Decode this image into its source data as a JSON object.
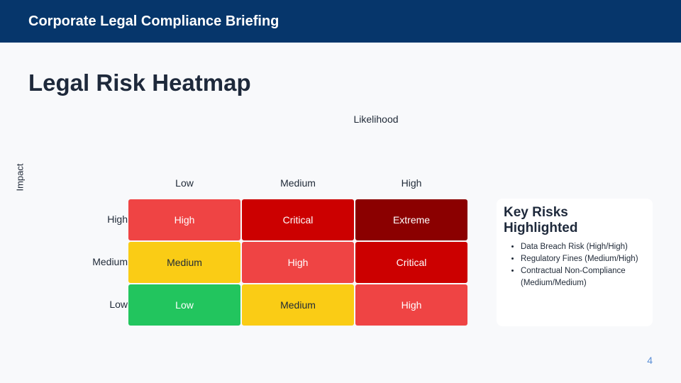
{
  "header": {
    "title": "Corporate Legal Compliance Briefing"
  },
  "slide": {
    "title": "Legal Risk Heatmap",
    "page_number": "4"
  },
  "heatmap": {
    "x_axis_label": "Likelihood",
    "y_axis_label": "Impact",
    "columns": [
      "Low",
      "Medium",
      "High"
    ],
    "rows": [
      {
        "label": "High",
        "cells": [
          {
            "label": "High",
            "color": "#ef4444",
            "text_color": "#ffffff"
          },
          {
            "label": "Critical",
            "color": "#cc0000",
            "text_color": "#ffffff"
          },
          {
            "label": "Extreme",
            "color": "#8b0000",
            "text_color": "#ffffff"
          }
        ]
      },
      {
        "label": "Medium",
        "cells": [
          {
            "label": "Medium",
            "color": "#facc15",
            "text_color": "#1f2937"
          },
          {
            "label": "High",
            "color": "#ef4444",
            "text_color": "#ffffff"
          },
          {
            "label": "Critical",
            "color": "#cc0000",
            "text_color": "#ffffff"
          }
        ]
      },
      {
        "label": "Low",
        "cells": [
          {
            "label": "Low",
            "color": "#22c55e",
            "text_color": "#ffffff"
          },
          {
            "label": "Medium",
            "color": "#facc15",
            "text_color": "#1f2937"
          },
          {
            "label": "High",
            "color": "#ef4444",
            "text_color": "#ffffff"
          }
        ]
      }
    ]
  },
  "key_risks": {
    "title": "Key Risks Highlighted",
    "items": [
      "Data Breach Risk (High/High)",
      "Regulatory Fines (Medium/High)",
      "Contractual Non-Compliance (Medium/Medium)"
    ]
  }
}
